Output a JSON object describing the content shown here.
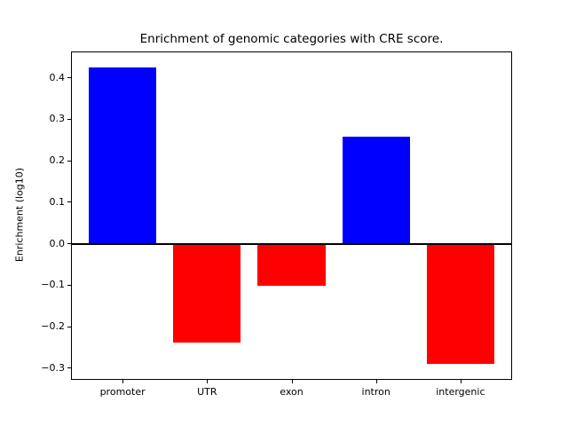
{
  "chart_data": {
    "type": "bar",
    "title": "Enrichment of genomic categories with CRE score.",
    "xlabel": "",
    "ylabel": "Enrichment (log10)",
    "categories": [
      "promoter",
      "UTR",
      "exon",
      "intron",
      "intergenic"
    ],
    "values": [
      0.425,
      -0.238,
      -0.102,
      0.257,
      -0.29
    ],
    "bar_colors": [
      "#0000ff",
      "#ff0000",
      "#ff0000",
      "#0000ff",
      "#ff0000"
    ],
    "positive_color": "#0000ff",
    "negative_color": "#ff0000",
    "ylim": [
      -0.326,
      0.461
    ],
    "yticks": [
      -0.3,
      -0.2,
      -0.1,
      0.0,
      0.1,
      0.2,
      0.3,
      0.4
    ],
    "ytick_labels": [
      "−0.3",
      "−0.2",
      "−0.1",
      "0.0",
      "0.1",
      "0.2",
      "0.3",
      "0.4"
    ],
    "grid": false,
    "legend": null,
    "zero_line": true,
    "frame_color": "#000000",
    "background_color": "#ffffff",
    "bar_width_fraction": 0.8
  }
}
